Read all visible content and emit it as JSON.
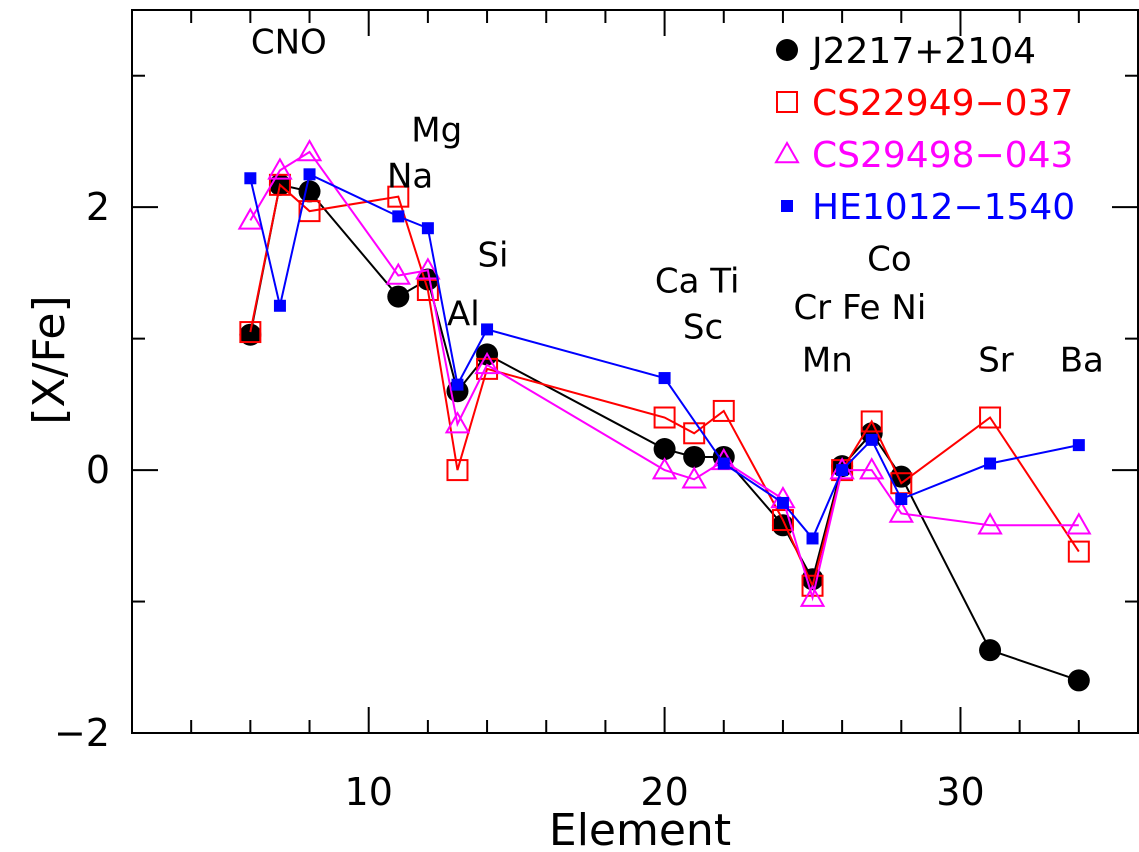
{
  "chart_data": {
    "type": "line",
    "xlabel": "Element",
    "ylabel": "[X/Fe]",
    "xlim": [
      2,
      36
    ],
    "ylim": [
      -2,
      3.5
    ],
    "x_ticks": [
      10,
      20,
      30
    ],
    "y_ticks": [
      -2,
      0,
      2
    ],
    "x_tick_labels": [
      "10",
      "20",
      "30"
    ],
    "y_tick_labels": [
      "−2",
      "0",
      "2"
    ],
    "x_minor_step": 2,
    "y_minor_step": 1,
    "legend_position": "top-right",
    "series": [
      {
        "name": "J2217+2104",
        "color": "#000000",
        "marker": "filled-circle",
        "points": [
          [
            6,
            1.03
          ],
          [
            7,
            2.17
          ],
          [
            8,
            2.12
          ],
          [
            11,
            1.32
          ],
          [
            12,
            1.45
          ],
          [
            13,
            0.6
          ],
          [
            14,
            0.88
          ],
          [
            20,
            0.16
          ],
          [
            21,
            0.1
          ],
          [
            22,
            0.1
          ],
          [
            24,
            -0.42
          ],
          [
            25,
            -0.83
          ],
          [
            26,
            0.03
          ],
          [
            27,
            0.28
          ],
          [
            28,
            -0.05
          ],
          [
            31,
            -1.37
          ],
          [
            34,
            -1.6
          ]
        ]
      },
      {
        "name": "CS22949−037",
        "color": "#ff0000",
        "marker": "open-square",
        "points": [
          [
            6,
            1.05
          ],
          [
            7,
            2.17
          ],
          [
            8,
            1.97
          ],
          [
            11,
            2.08
          ],
          [
            12,
            1.37
          ],
          [
            13,
            0.0
          ],
          [
            14,
            0.77
          ],
          [
            20,
            0.4
          ],
          [
            21,
            0.28
          ],
          [
            22,
            0.45
          ],
          [
            24,
            -0.38
          ],
          [
            25,
            -0.88
          ],
          [
            26,
            0.0
          ],
          [
            27,
            0.37
          ],
          [
            28,
            -0.1
          ],
          [
            31,
            0.4
          ],
          [
            34,
            -0.62
          ]
        ]
      },
      {
        "name": "CS29498−043",
        "color": "#ff00ff",
        "marker": "open-triangle",
        "points": [
          [
            6,
            1.9
          ],
          [
            7,
            2.28
          ],
          [
            8,
            2.42
          ],
          [
            11,
            1.48
          ],
          [
            12,
            1.52
          ],
          [
            13,
            0.35
          ],
          [
            14,
            0.8
          ],
          [
            20,
            0.0
          ],
          [
            21,
            -0.07
          ],
          [
            22,
            0.07
          ],
          [
            24,
            -0.22
          ],
          [
            25,
            -0.97
          ],
          [
            26,
            0.0
          ],
          [
            27,
            0.0
          ],
          [
            28,
            -0.33
          ],
          [
            31,
            -0.42
          ],
          [
            34,
            -0.42
          ]
        ]
      },
      {
        "name": "HE1012−1540",
        "color": "#0000ff",
        "marker": "filled-square",
        "points": [
          [
            6,
            2.22
          ],
          [
            7,
            1.25
          ],
          [
            8,
            2.25
          ],
          [
            11,
            1.93
          ],
          [
            12,
            1.84
          ],
          [
            13,
            0.65
          ],
          [
            14,
            1.07
          ],
          [
            20,
            0.7
          ],
          [
            22,
            0.05
          ],
          [
            24,
            -0.25
          ],
          [
            25,
            -0.52
          ],
          [
            26,
            0.0
          ],
          [
            27,
            0.23
          ],
          [
            28,
            -0.22
          ],
          [
            31,
            0.05
          ],
          [
            34,
            0.19
          ]
        ]
      }
    ],
    "annotations": [
      {
        "text": "CNO",
        "x": 7.3,
        "y": 3.17
      },
      {
        "text": "Mg",
        "x": 12.3,
        "y": 2.5
      },
      {
        "text": "Na",
        "x": 11.4,
        "y": 2.15
      },
      {
        "text": "Si",
        "x": 14.2,
        "y": 1.55
      },
      {
        "text": "Al",
        "x": 13.2,
        "y": 1.1
      },
      {
        "text": "Ca Ti",
        "x": 21.1,
        "y": 1.35
      },
      {
        "text": "Sc",
        "x": 21.3,
        "y": 1.0
      },
      {
        "text": "Co",
        "x": 27.6,
        "y": 1.52
      },
      {
        "text": "Cr Fe Ni",
        "x": 26.6,
        "y": 1.15
      },
      {
        "text": "Mn",
        "x": 25.5,
        "y": 0.75
      },
      {
        "text": "Sr",
        "x": 31.2,
        "y": 0.75
      },
      {
        "text": "Ba",
        "x": 34.1,
        "y": 0.75
      }
    ]
  }
}
